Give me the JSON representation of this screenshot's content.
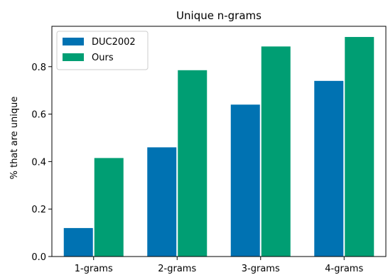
{
  "chart_data": {
    "type": "bar",
    "title": "Unique n-grams",
    "xlabel": "",
    "ylabel": "% that are unique",
    "categories": [
      "1-grams",
      "2-grams",
      "3-grams",
      "4-grams"
    ],
    "series": [
      {
        "name": "DUC2002",
        "color": "#0072b2",
        "values": [
          0.12,
          0.46,
          0.64,
          0.74
        ]
      },
      {
        "name": "Ours",
        "color": "#009e73",
        "values": [
          0.415,
          0.785,
          0.885,
          0.925
        ]
      }
    ],
    "ylim": [
      0,
      0.97
    ],
    "yticks": [
      0.0,
      0.2,
      0.4,
      0.6,
      0.8
    ],
    "ytick_labels": [
      "0.0",
      "0.2",
      "0.4",
      "0.6",
      "0.8"
    ],
    "grid": false,
    "legend_position": "top-left"
  }
}
